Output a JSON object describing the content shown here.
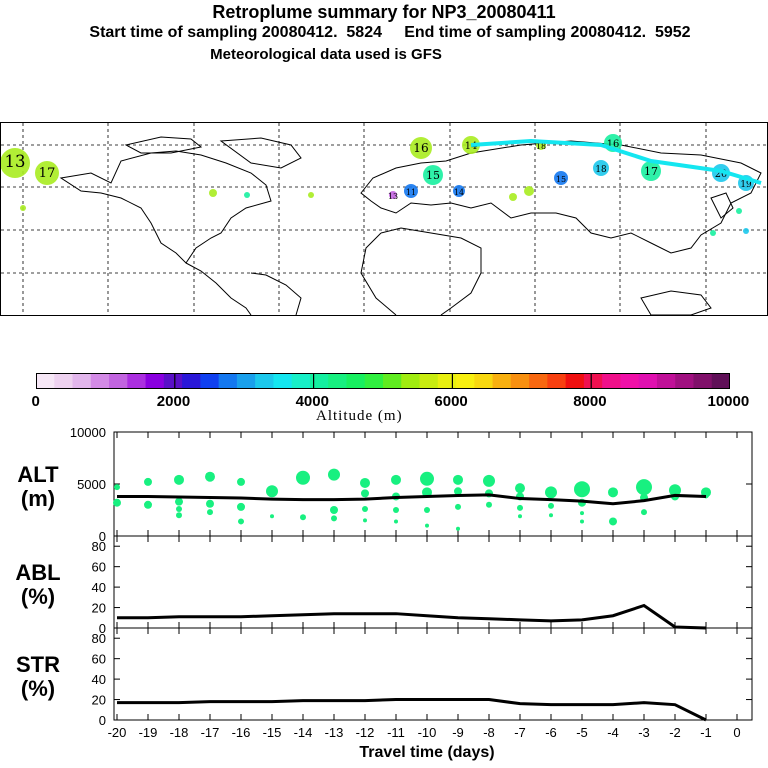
{
  "header": {
    "title": "Retroplume summary for NP3_20080411",
    "sampling": "Start time of sampling 20080412.  5824     End time of sampling 20080412.  5952",
    "meteo": "Meteorological data used is GFS"
  },
  "colorbar": {
    "label": "Altitude (m)",
    "ticks": [
      "0",
      "2000",
      "4000",
      "6000",
      "8000",
      "10000"
    ],
    "colors": [
      "#f6e7f6",
      "#eed2f0",
      "#e2b6ec",
      "#d38ae6",
      "#c264e0",
      "#ab2fe0",
      "#8a00e0",
      "#5a10c8",
      "#2a18d8",
      "#1040f0",
      "#1478f0",
      "#1aa0ec",
      "#1cc8ec",
      "#14e6f0",
      "#18f0c8",
      "#14f0a0",
      "#18f080",
      "#18f060",
      "#30f040",
      "#60ec20",
      "#a0ec10",
      "#c8ec10",
      "#e8f010",
      "#f8f010",
      "#f8d810",
      "#f8b010",
      "#f89010",
      "#f86810",
      "#f84010",
      "#f01010",
      "#f01050",
      "#f0108a",
      "#f010a8",
      "#e010b0",
      "#c01098",
      "#a01080",
      "#80106a",
      "#601058"
    ]
  },
  "map": {
    "plume_labels": [
      {
        "text": "16",
        "color": "#a8ec20"
      },
      {
        "text": "14",
        "color": "#a8ec20"
      },
      {
        "text": "13",
        "color": "#a8ec20"
      },
      {
        "text": "17",
        "color": "#a8ec20"
      },
      {
        "text": "15",
        "color": "#18f0a0"
      },
      {
        "text": "18",
        "color": "#a8ec20"
      },
      {
        "text": "16",
        "color": "#18f0a0"
      },
      {
        "text": "17",
        "color": "#18f0a0"
      },
      {
        "text": "20",
        "color": "#1cc8ec"
      },
      {
        "text": "19",
        "color": "#1cc8ec"
      },
      {
        "text": "18",
        "color": "#1cc8ec"
      },
      {
        "text": "15",
        "color": "#1478f0"
      },
      {
        "text": "14",
        "color": "#1478f0"
      },
      {
        "text": "11",
        "color": "#1478f0"
      },
      {
        "text": "13",
        "color": "#c264e0"
      }
    ]
  },
  "chart_data": [
    {
      "type": "scatter+line",
      "name": "ALT",
      "ylabel_line1": "ALT",
      "ylabel_line2": "(m)",
      "ylim": [
        0,
        10000
      ],
      "yticks": [
        "10000",
        "5000",
        "0"
      ],
      "ytick_values": [
        10000,
        5000,
        0
      ],
      "x": [
        -20,
        -19,
        -18,
        -17,
        -16,
        -15,
        -14,
        -13,
        -12,
        -11,
        -10,
        -9,
        -8,
        -7,
        -6,
        -5,
        -4,
        -3,
        -2,
        -1
      ],
      "median_line": [
        3800,
        3800,
        3750,
        3700,
        3650,
        3550,
        3500,
        3500,
        3550,
        3700,
        3800,
        3900,
        3950,
        3600,
        3500,
        3350,
        3100,
        3400,
        3900,
        3800
      ],
      "clusters": [
        {
          "x": -20.0,
          "y": 4700,
          "s": 2
        },
        {
          "x": -20.0,
          "y": 3200,
          "s": 3
        },
        {
          "x": -19.0,
          "y": 5200,
          "s": 3
        },
        {
          "x": -19.0,
          "y": 3000,
          "s": 3
        },
        {
          "x": -18.0,
          "y": 5400,
          "s": 4
        },
        {
          "x": -18.0,
          "y": 3300,
          "s": 3
        },
        {
          "x": -18.0,
          "y": 2600,
          "s": 2
        },
        {
          "x": -18.0,
          "y": 2000,
          "s": 2
        },
        {
          "x": -17.0,
          "y": 5700,
          "s": 4
        },
        {
          "x": -17.0,
          "y": 3100,
          "s": 3
        },
        {
          "x": -17.0,
          "y": 2300,
          "s": 2
        },
        {
          "x": -16.0,
          "y": 5200,
          "s": 3
        },
        {
          "x": -16.0,
          "y": 2800,
          "s": 3
        },
        {
          "x": -16.0,
          "y": 1400,
          "s": 2
        },
        {
          "x": -15.0,
          "y": 4300,
          "s": 5
        },
        {
          "x": -15.0,
          "y": 1900,
          "s": 1
        },
        {
          "x": -14.0,
          "y": 5600,
          "s": 6
        },
        {
          "x": -14.0,
          "y": 1800,
          "s": 2
        },
        {
          "x": -13.0,
          "y": 5900,
          "s": 5
        },
        {
          "x": -13.0,
          "y": 2500,
          "s": 3
        },
        {
          "x": -13.0,
          "y": 1700,
          "s": 2
        },
        {
          "x": -12.0,
          "y": 5100,
          "s": 4
        },
        {
          "x": -12.0,
          "y": 4100,
          "s": 3
        },
        {
          "x": -12.0,
          "y": 2600,
          "s": 2
        },
        {
          "x": -12.0,
          "y": 1500,
          "s": 1
        },
        {
          "x": -11.0,
          "y": 5400,
          "s": 4
        },
        {
          "x": -11.0,
          "y": 3800,
          "s": 3
        },
        {
          "x": -11.0,
          "y": 2500,
          "s": 2
        },
        {
          "x": -11.0,
          "y": 1400,
          "s": 1
        },
        {
          "x": -10.0,
          "y": 5500,
          "s": 6
        },
        {
          "x": -10.0,
          "y": 4200,
          "s": 4
        },
        {
          "x": -10.0,
          "y": 2500,
          "s": 2
        },
        {
          "x": -10.0,
          "y": 1000,
          "s": 1
        },
        {
          "x": -9.0,
          "y": 5400,
          "s": 4
        },
        {
          "x": -9.0,
          "y": 4300,
          "s": 3
        },
        {
          "x": -9.0,
          "y": 2800,
          "s": 2
        },
        {
          "x": -9.0,
          "y": 700,
          "s": 1
        },
        {
          "x": -8.0,
          "y": 5300,
          "s": 5
        },
        {
          "x": -8.0,
          "y": 4100,
          "s": 3
        },
        {
          "x": -8.0,
          "y": 3000,
          "s": 2
        },
        {
          "x": -7.0,
          "y": 4600,
          "s": 4
        },
        {
          "x": -7.0,
          "y": 3800,
          "s": 3
        },
        {
          "x": -7.0,
          "y": 2700,
          "s": 2
        },
        {
          "x": -7.0,
          "y": 1900,
          "s": 1
        },
        {
          "x": -6.0,
          "y": 4200,
          "s": 5
        },
        {
          "x": -6.0,
          "y": 2900,
          "s": 2
        },
        {
          "x": -6.0,
          "y": 2000,
          "s": 1
        },
        {
          "x": -5.0,
          "y": 4500,
          "s": 7
        },
        {
          "x": -5.0,
          "y": 3200,
          "s": 3
        },
        {
          "x": -5.0,
          "y": 2200,
          "s": 1
        },
        {
          "x": -5.0,
          "y": 1400,
          "s": 1
        },
        {
          "x": -4.0,
          "y": 4200,
          "s": 4
        },
        {
          "x": -4.0,
          "y": 1400,
          "s": 3
        },
        {
          "x": -3.0,
          "y": 4700,
          "s": 7
        },
        {
          "x": -3.0,
          "y": 3700,
          "s": 3
        },
        {
          "x": -3.0,
          "y": 2300,
          "s": 2
        },
        {
          "x": -2.0,
          "y": 4400,
          "s": 5
        },
        {
          "x": -2.0,
          "y": 3800,
          "s": 3
        },
        {
          "x": -1.0,
          "y": 4200,
          "s": 4
        },
        {
          "x": -1.0,
          "y": 3900,
          "s": 2
        }
      ]
    },
    {
      "type": "line",
      "name": "ABL",
      "ylabel_line1": "ABL",
      "ylabel_line2": "(%)",
      "ylim": [
        0,
        90
      ],
      "yticks": [
        "80",
        "60",
        "40",
        "20",
        "0"
      ],
      "ytick_values": [
        80,
        60,
        40,
        20,
        0
      ],
      "x": [
        -20,
        -19,
        -18,
        -17,
        -16,
        -15,
        -14,
        -13,
        -12,
        -11,
        -10,
        -9,
        -8,
        -7,
        -6,
        -5,
        -4,
        -3,
        -2,
        -1
      ],
      "values": [
        10,
        10,
        11,
        11,
        11,
        12,
        13,
        14,
        14,
        14,
        12,
        10,
        9,
        8,
        7,
        8,
        12,
        22,
        1,
        0
      ]
    },
    {
      "type": "line",
      "name": "STR",
      "ylabel_line1": "STR",
      "ylabel_line2": "(%)",
      "ylim": [
        0,
        90
      ],
      "yticks": [
        "80",
        "60",
        "40",
        "20",
        "0"
      ],
      "ytick_values": [
        80,
        60,
        40,
        20,
        0
      ],
      "x": [
        -20,
        -19,
        -18,
        -17,
        -16,
        -15,
        -14,
        -13,
        -12,
        -11,
        -10,
        -9,
        -8,
        -7,
        -6,
        -5,
        -4,
        -3,
        -2,
        -1
      ],
      "values": [
        17,
        17,
        17,
        18,
        18,
        18,
        19,
        19,
        19,
        20,
        20,
        20,
        20,
        16,
        15,
        15,
        15,
        17,
        15,
        0
      ],
      "xlabel": "Travel time (days)",
      "xticks": [
        "-20",
        "-19",
        "-18",
        "-17",
        "-16",
        "-15",
        "-14",
        "-13",
        "-12",
        "-11",
        "-10",
        "-9",
        "-8",
        "-7",
        "-6",
        "-5",
        "-4",
        "-3",
        "-2",
        "-1",
        "0"
      ]
    }
  ]
}
